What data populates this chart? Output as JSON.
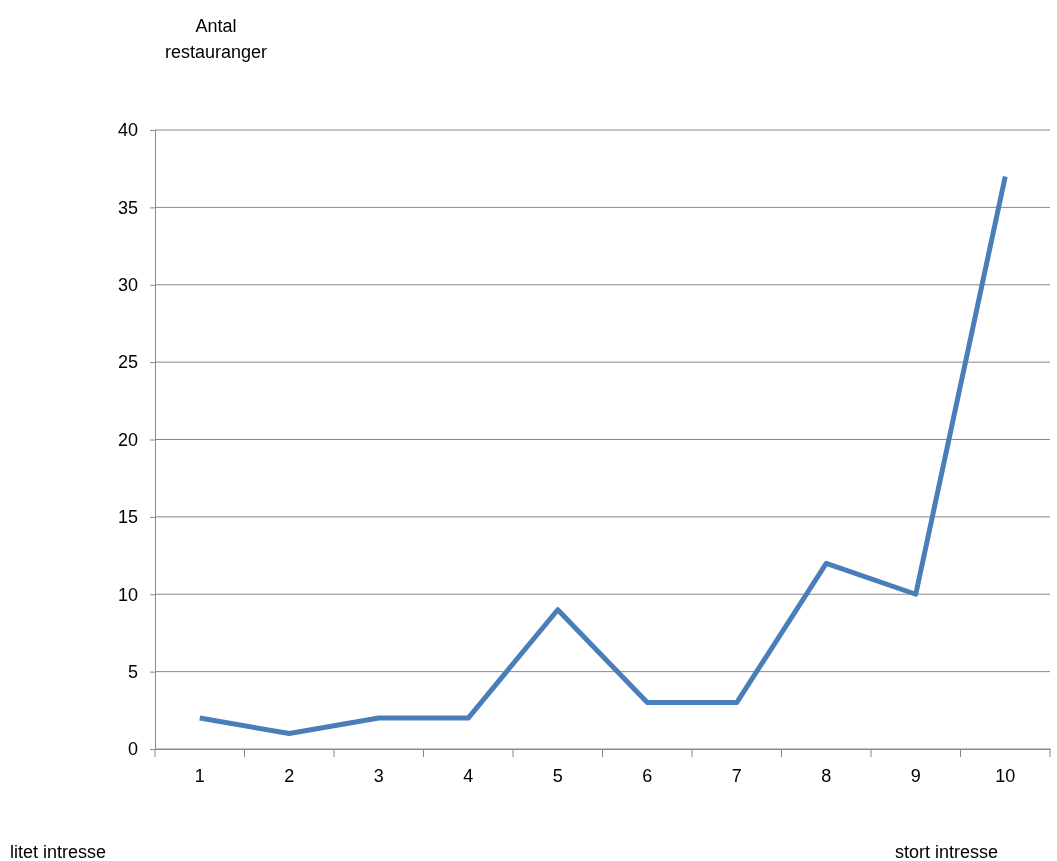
{
  "chart_data": {
    "type": "line",
    "ylabel": "Antal restauranger",
    "categories": [
      "1",
      "2",
      "3",
      "4",
      "5",
      "6",
      "7",
      "8",
      "9",
      "10"
    ],
    "series": [
      {
        "color": "#4a7ebb",
        "values": [
          2,
          1,
          2,
          2,
          9,
          3,
          3,
          12,
          10,
          37
        ]
      }
    ],
    "ylim": [
      0,
      40
    ],
    "yticks": [
      0,
      5,
      10,
      15,
      20,
      25,
      30,
      35,
      40
    ],
    "grid": "y",
    "marker": "none",
    "line_style": "solid",
    "annotations": [
      "litet intresse",
      "stort intresse"
    ]
  }
}
